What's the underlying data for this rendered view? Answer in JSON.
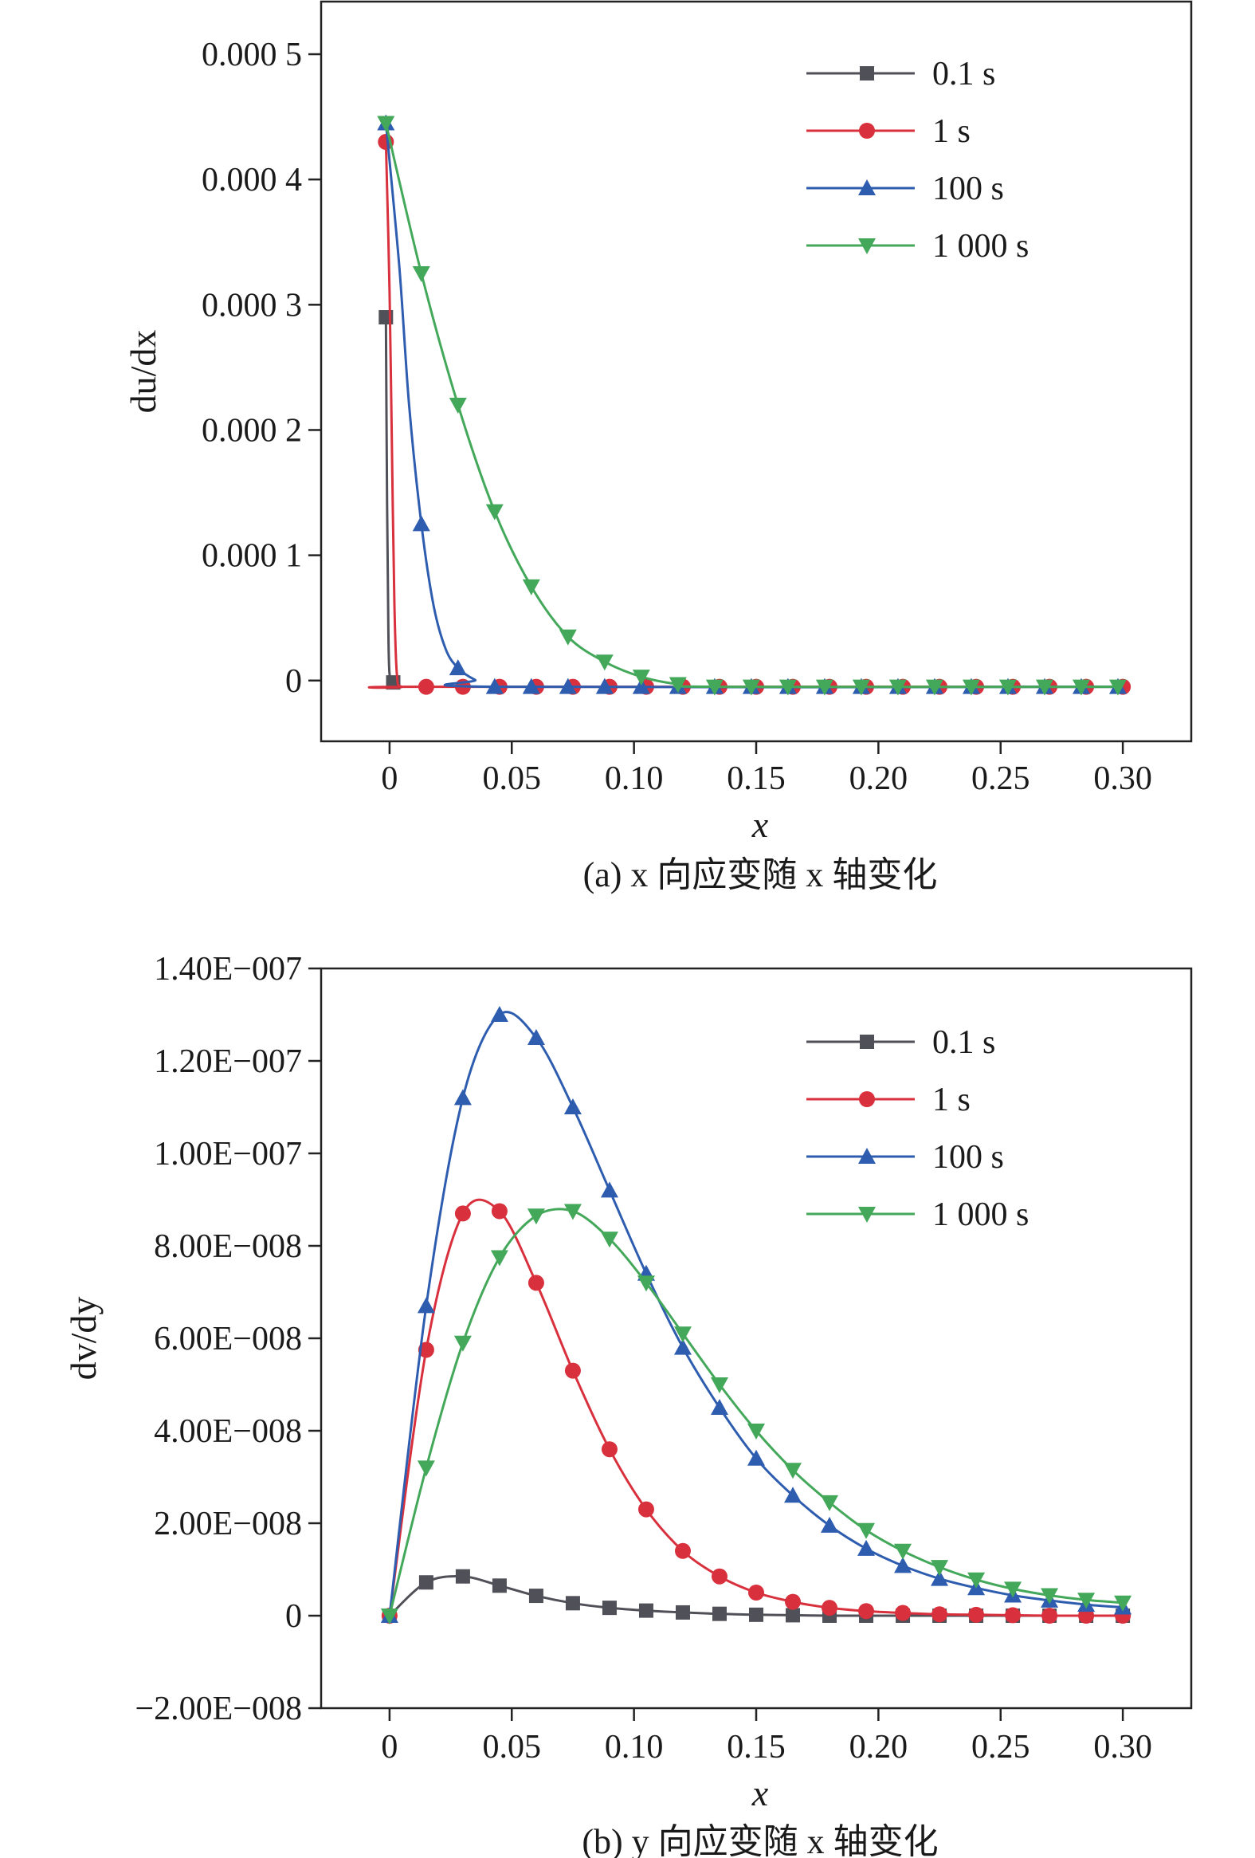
{
  "chart_data": [
    {
      "type": "line",
      "caption": "(a) x 向应变随 x 轴变化",
      "xlabel": "x",
      "ylabel": "du/dx",
      "xlim": [
        -0.028,
        0.328
      ],
      "ylim": [
        -4.85e-05,
        0.000542
      ],
      "x_ticks": [
        0,
        0.05,
        0.1,
        0.15,
        0.2,
        0.25,
        0.3
      ],
      "x_tick_labels": [
        "0",
        "0.05",
        "0.10",
        "0.15",
        "0.20",
        "0.25",
        "0.30"
      ],
      "y_ticks": [
        0,
        0.0001,
        0.0002,
        0.0003,
        0.0004,
        0.0005
      ],
      "y_tick_labels": [
        "0",
        "0.000 1",
        "0.000 2",
        "0.000 3",
        "0.000 4",
        "0.000 5"
      ],
      "legend_position": "top-right",
      "series": [
        {
          "name": "0.1 s",
          "color": "#505058",
          "marker": "square",
          "markers": [
            [
              -0.0015,
              0.00029
            ],
            [
              0.0015,
              -1.5e-06
            ]
          ],
          "curve": [
            [
              -0.0015,
              0.00029
            ],
            [
              -0.001,
              0.00014
            ],
            [
              -0.0005,
              4e-05
            ],
            [
              0,
              5e-06
            ],
            [
              0.0015,
              -1.5e-06
            ],
            [
              0.004,
              -5e-06
            ]
          ]
        },
        {
          "name": "1 s",
          "color": "#d8303c",
          "marker": "circle",
          "markers": [
            [
              -0.0015,
              0.00043
            ],
            [
              0.015,
              -5e-06
            ],
            [
              0.03,
              -5e-06
            ],
            [
              0.045,
              -5e-06
            ],
            [
              0.06,
              -5e-06
            ],
            [
              0.075,
              -5e-06
            ],
            [
              0.09,
              -5e-06
            ],
            [
              0.105,
              -5e-06
            ],
            [
              0.12,
              -5e-06
            ],
            [
              0.135,
              -5e-06
            ],
            [
              0.15,
              -5e-06
            ],
            [
              0.165,
              -5e-06
            ],
            [
              0.18,
              -5e-06
            ],
            [
              0.195,
              -5e-06
            ],
            [
              0.21,
              -5e-06
            ],
            [
              0.225,
              -5e-06
            ],
            [
              0.24,
              -5e-06
            ],
            [
              0.255,
              -5e-06
            ],
            [
              0.27,
              -5e-06
            ],
            [
              0.285,
              -5e-06
            ],
            [
              0.3,
              -5e-06
            ]
          ],
          "curve": [
            [
              -0.0015,
              0.00043
            ],
            [
              0,
              0.00031
            ],
            [
              0.001,
              0.00018
            ],
            [
              0.002,
              6e-05
            ],
            [
              0.003,
              5e-06
            ],
            [
              0.005,
              -5e-06
            ],
            [
              0.015,
              -5e-06
            ],
            [
              0.3,
              -5e-06
            ]
          ]
        },
        {
          "name": "100 s",
          "color": "#2e5db0",
          "marker": "triangle-up",
          "markers": [
            [
              -0.0015,
              0.000445
            ],
            [
              0.013,
              0.000125
            ],
            [
              0.028,
              1e-05
            ],
            [
              0.043,
              -5e-06
            ],
            [
              0.058,
              -5e-06
            ],
            [
              0.073,
              -5e-06
            ],
            [
              0.088,
              -5e-06
            ],
            [
              0.103,
              -5e-06
            ],
            [
              0.118,
              -5e-06
            ],
            [
              0.133,
              -5e-06
            ],
            [
              0.148,
              -5e-06
            ],
            [
              0.163,
              -5e-06
            ],
            [
              0.178,
              -5e-06
            ],
            [
              0.193,
              -5e-06
            ],
            [
              0.208,
              -5e-06
            ],
            [
              0.223,
              -5e-06
            ],
            [
              0.238,
              -5e-06
            ],
            [
              0.253,
              -5e-06
            ],
            [
              0.268,
              -5e-06
            ],
            [
              0.283,
              -5e-06
            ],
            [
              0.298,
              -5e-06
            ]
          ],
          "curve": [
            [
              -0.0015,
              0.000445
            ],
            [
              0.004,
              0.00033
            ],
            [
              0.008,
              0.00022
            ],
            [
              0.013,
              0.000125
            ],
            [
              0.018,
              6e-05
            ],
            [
              0.023,
              2.5e-05
            ],
            [
              0.028,
              1e-05
            ],
            [
              0.035,
              5e-07
            ],
            [
              0.043,
              -5e-06
            ],
            [
              0.298,
              -5e-06
            ]
          ]
        },
        {
          "name": "1 000 s",
          "color": "#43a85a",
          "marker": "triangle-down",
          "markers": [
            [
              -0.0015,
              0.000445
            ],
            [
              0.013,
              0.000325
            ],
            [
              0.028,
              0.00022
            ],
            [
              0.043,
              0.000135
            ],
            [
              0.058,
              7.5e-05
            ],
            [
              0.073,
              3.5e-05
            ],
            [
              0.088,
              1.5e-05
            ],
            [
              0.103,
              3e-06
            ],
            [
              0.118,
              -3e-06
            ],
            [
              0.133,
              -5e-06
            ],
            [
              0.148,
              -5e-06
            ],
            [
              0.163,
              -5e-06
            ],
            [
              0.178,
              -5e-06
            ],
            [
              0.193,
              -5e-06
            ],
            [
              0.208,
              -5e-06
            ],
            [
              0.223,
              -5e-06
            ],
            [
              0.238,
              -5e-06
            ],
            [
              0.253,
              -5e-06
            ],
            [
              0.268,
              -5e-06
            ],
            [
              0.283,
              -5e-06
            ],
            [
              0.298,
              -5e-06
            ]
          ],
          "curve": [
            [
              -0.0015,
              0.000445
            ],
            [
              0.013,
              0.000325
            ],
            [
              0.028,
              0.00022
            ],
            [
              0.043,
              0.000135
            ],
            [
              0.058,
              7.5e-05
            ],
            [
              0.073,
              3.5e-05
            ],
            [
              0.088,
              1.5e-05
            ],
            [
              0.103,
              3e-06
            ],
            [
              0.118,
              -3e-06
            ],
            [
              0.133,
              -5e-06
            ],
            [
              0.298,
              -5e-06
            ]
          ]
        }
      ]
    },
    {
      "type": "line",
      "caption": "(b) y 向应变随 x 轴变化",
      "xlabel": "x",
      "ylabel": "dv/dy",
      "xlim": [
        -0.028,
        0.328
      ],
      "ylim": [
        -2e-08,
        1.4e-07
      ],
      "x_ticks": [
        0,
        0.05,
        0.1,
        0.15,
        0.2,
        0.25,
        0.3
      ],
      "x_tick_labels": [
        "0",
        "0.05",
        "0.10",
        "0.15",
        "0.20",
        "0.25",
        "0.30"
      ],
      "y_ticks": [
        -2e-08,
        0,
        2e-08,
        4e-08,
        6e-08,
        8e-08,
        1e-07,
        1.2e-07,
        1.4e-07
      ],
      "y_tick_labels": [
        "−2.00E−008",
        "0",
        "2.00E−008",
        "4.00E−008",
        "6.00E−008",
        "8.00E−008",
        "1.00E−007",
        "1.20E−007",
        "1.40E−007"
      ],
      "legend_position": "top-right",
      "series": [
        {
          "name": "0.1 s",
          "color": "#505058",
          "marker": "square",
          "markers": [
            [
              0,
              0
            ],
            [
              0.015,
              7.2e-09
            ],
            [
              0.03,
              8.5e-09
            ],
            [
              0.045,
              6.5e-09
            ],
            [
              0.06,
              4.3e-09
            ],
            [
              0.075,
              2.7e-09
            ],
            [
              0.09,
              1.7e-09
            ],
            [
              0.105,
              1.1e-09
            ],
            [
              0.12,
              7e-10
            ],
            [
              0.135,
              4e-10
            ],
            [
              0.15,
              2e-10
            ],
            [
              0.165,
              1e-10
            ],
            [
              0.18,
              0
            ],
            [
              0.195,
              0
            ],
            [
              0.21,
              0
            ],
            [
              0.225,
              0
            ],
            [
              0.24,
              0
            ],
            [
              0.255,
              0
            ],
            [
              0.27,
              0
            ],
            [
              0.285,
              0
            ],
            [
              0.3,
              0
            ]
          ]
        },
        {
          "name": "1 s",
          "color": "#d8303c",
          "marker": "circle",
          "markers": [
            [
              0,
              0
            ],
            [
              0.015,
              5.75e-08
            ],
            [
              0.03,
              8.7e-08
            ],
            [
              0.045,
              8.75e-08
            ],
            [
              0.06,
              7.2e-08
            ],
            [
              0.075,
              5.3e-08
            ],
            [
              0.09,
              3.6e-08
            ],
            [
              0.105,
              2.3e-08
            ],
            [
              0.12,
              1.4e-08
            ],
            [
              0.135,
              8.5e-09
            ],
            [
              0.15,
              5e-09
            ],
            [
              0.165,
              3e-09
            ],
            [
              0.18,
              1.7e-09
            ],
            [
              0.195,
              1e-09
            ],
            [
              0.21,
              6e-10
            ],
            [
              0.225,
              3e-10
            ],
            [
              0.24,
              2e-10
            ],
            [
              0.255,
              1e-10
            ],
            [
              0.27,
              0
            ],
            [
              0.285,
              0
            ],
            [
              0.3,
              0
            ]
          ]
        },
        {
          "name": "100 s",
          "color": "#2e5db0",
          "marker": "triangle-up",
          "markers": [
            [
              0,
              0
            ],
            [
              0.015,
              6.7e-08
            ],
            [
              0.03,
              1.12e-07
            ],
            [
              0.045,
              1.3e-07
            ],
            [
              0.06,
              1.25e-07
            ],
            [
              0.075,
              1.1e-07
            ],
            [
              0.09,
              9.2e-08
            ],
            [
              0.105,
              7.4e-08
            ],
            [
              0.12,
              5.8e-08
            ],
            [
              0.135,
              4.5e-08
            ],
            [
              0.15,
              3.4e-08
            ],
            [
              0.165,
              2.6e-08
            ],
            [
              0.18,
              1.95e-08
            ],
            [
              0.195,
              1.45e-08
            ],
            [
              0.21,
              1.08e-08
            ],
            [
              0.225,
              8e-09
            ],
            [
              0.24,
              6e-09
            ],
            [
              0.255,
              4.4e-09
            ],
            [
              0.27,
              3.3e-09
            ],
            [
              0.285,
              2.4e-09
            ],
            [
              0.3,
              1.8e-09
            ]
          ]
        },
        {
          "name": "1 000 s",
          "color": "#43a85a",
          "marker": "triangle-down",
          "markers": [
            [
              0,
              0
            ],
            [
              0.015,
              3.2e-08
            ],
            [
              0.03,
              5.9e-08
            ],
            [
              0.045,
              7.75e-08
            ],
            [
              0.06,
              8.65e-08
            ],
            [
              0.075,
              8.75e-08
            ],
            [
              0.09,
              8.15e-08
            ],
            [
              0.105,
              7.2e-08
            ],
            [
              0.12,
              6.1e-08
            ],
            [
              0.135,
              5e-08
            ],
            [
              0.15,
              4e-08
            ],
            [
              0.165,
              3.15e-08
            ],
            [
              0.18,
              2.45e-08
            ],
            [
              0.195,
              1.85e-08
            ],
            [
              0.21,
              1.4e-08
            ],
            [
              0.225,
              1.05e-08
            ],
            [
              0.24,
              7.8e-09
            ],
            [
              0.255,
              5.8e-09
            ],
            [
              0.27,
              4.4e-09
            ],
            [
              0.285,
              3.4e-09
            ],
            [
              0.3,
              2.8e-09
            ]
          ]
        }
      ]
    }
  ]
}
